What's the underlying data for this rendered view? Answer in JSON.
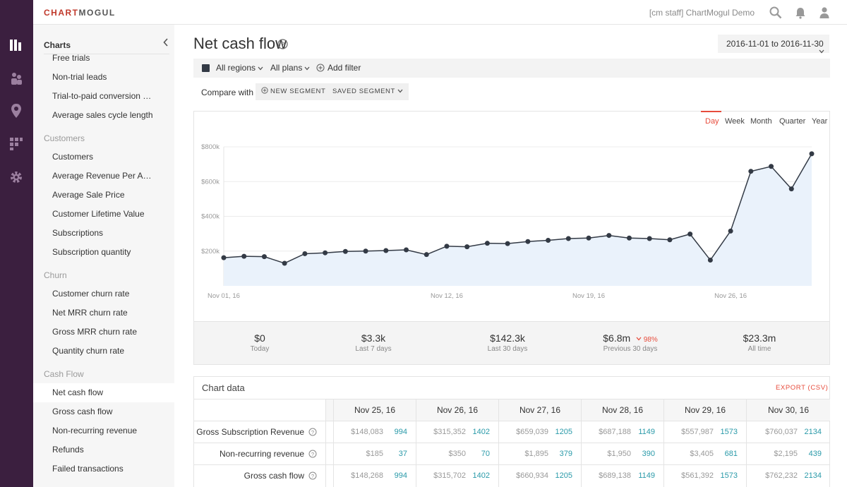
{
  "brand": {
    "logo_left": "CHART",
    "logo_right": "MOGUL",
    "accent": "#e74c3c",
    "rail_color": "#3b1f3f"
  },
  "topbar": {
    "account": "[cm staff] ChartMogul Demo"
  },
  "sidebar": {
    "header": "Charts",
    "sections": [
      {
        "items": [
          "Free trials",
          "Non-trial leads",
          "Trial-to-paid conversion rate",
          "Average sales cycle length"
        ]
      },
      {
        "title": "Customers",
        "items": [
          "Customers",
          "Average Revenue Per Account",
          "Average Sale Price",
          "Customer Lifetime Value",
          "Subscriptions",
          "Subscription quantity"
        ]
      },
      {
        "title": "Churn",
        "items": [
          "Customer churn rate",
          "Net MRR churn rate",
          "Gross MRR churn rate",
          "Quantity churn rate"
        ]
      },
      {
        "title": "Cash Flow",
        "items": [
          "Net cash flow",
          "Gross cash flow",
          "Non-recurring revenue",
          "Refunds",
          "Failed transactions"
        ]
      }
    ],
    "active_item": "Net cash flow"
  },
  "page": {
    "title": "Net cash flow",
    "date_range": "2016-11-01 to 2016-11-30"
  },
  "filters": {
    "regions": "All regions",
    "plans": "All plans",
    "add_filter": "Add filter",
    "compare_with": "Compare with",
    "new_segment": "NEW SEGMENT",
    "saved_segment": "SAVED SEGMENT"
  },
  "periods": {
    "day": "Day",
    "week": "Week",
    "month": "Month",
    "quarter": "Quarter",
    "year": "Year",
    "active": "Day"
  },
  "chart_data": {
    "type": "area",
    "title": "Net cash flow",
    "ylabel": "",
    "xlabel": "",
    "ylim": [
      0,
      800000
    ],
    "yticks": [
      200000,
      400000,
      600000,
      800000
    ],
    "ytick_labels": [
      "$200k",
      "$400k",
      "$600k",
      "$800k"
    ],
    "xtick_labels": [
      {
        "day": 1,
        "label": "Nov 01, 16"
      },
      {
        "day": 12,
        "label": "Nov 12, 16"
      },
      {
        "day": 19,
        "label": "Nov 19, 16"
      },
      {
        "day": 26,
        "label": "Nov 26, 16"
      }
    ],
    "x": [
      1,
      2,
      3,
      4,
      5,
      6,
      7,
      8,
      9,
      10,
      11,
      12,
      13,
      14,
      15,
      16,
      17,
      18,
      19,
      20,
      21,
      22,
      23,
      24,
      25,
      26,
      27,
      28,
      29,
      30
    ],
    "values": [
      162000,
      170000,
      168000,
      130000,
      185000,
      190000,
      198000,
      200000,
      203000,
      207000,
      180000,
      228000,
      225000,
      245000,
      243000,
      255000,
      262000,
      272000,
      275000,
      290000,
      275000,
      272000,
      265000,
      298000,
      148083,
      315352,
      659039,
      687188,
      557987,
      760037
    ],
    "grid": true,
    "line_color": "#333a45",
    "fill_color": "#eaf2fb"
  },
  "stats": [
    {
      "value": "$0",
      "label": "Today"
    },
    {
      "value": "$3.3k",
      "label": "Last 7 days"
    },
    {
      "value": "$142.3k",
      "label": "Last 30 days"
    },
    {
      "value": "$6.8m",
      "label": "Previous 30 days",
      "delta": "98%"
    },
    {
      "value": "$23.3m",
      "label": "All time"
    }
  ],
  "chart_table": {
    "title": "Chart data",
    "export": "EXPORT (CSV)",
    "columns": [
      "Nov 25, 16",
      "Nov 26, 16",
      "Nov 27, 16",
      "Nov 28, 16",
      "Nov 29, 16",
      "Nov 30, 16"
    ],
    "rows": [
      {
        "label": "Gross Subscription Revenue",
        "cells": [
          [
            "$148,083",
            "994"
          ],
          [
            "$315,352",
            "1402"
          ],
          [
            "$659,039",
            "1205"
          ],
          [
            "$687,188",
            "1149"
          ],
          [
            "$557,987",
            "1573"
          ],
          [
            "$760,037",
            "2134"
          ]
        ]
      },
      {
        "label": "Non-recurring revenue",
        "cells": [
          [
            "$185",
            "37"
          ],
          [
            "$350",
            "70"
          ],
          [
            "$1,895",
            "379"
          ],
          [
            "$1,950",
            "390"
          ],
          [
            "$3,405",
            "681"
          ],
          [
            "$2,195",
            "439"
          ]
        ]
      },
      {
        "label": "Gross cash flow",
        "cells": [
          [
            "$148,268",
            "994"
          ],
          [
            "$315,702",
            "1402"
          ],
          [
            "$660,934",
            "1205"
          ],
          [
            "$689,138",
            "1149"
          ],
          [
            "$561,392",
            "1573"
          ],
          [
            "$762,232",
            "2134"
          ]
        ]
      }
    ]
  }
}
